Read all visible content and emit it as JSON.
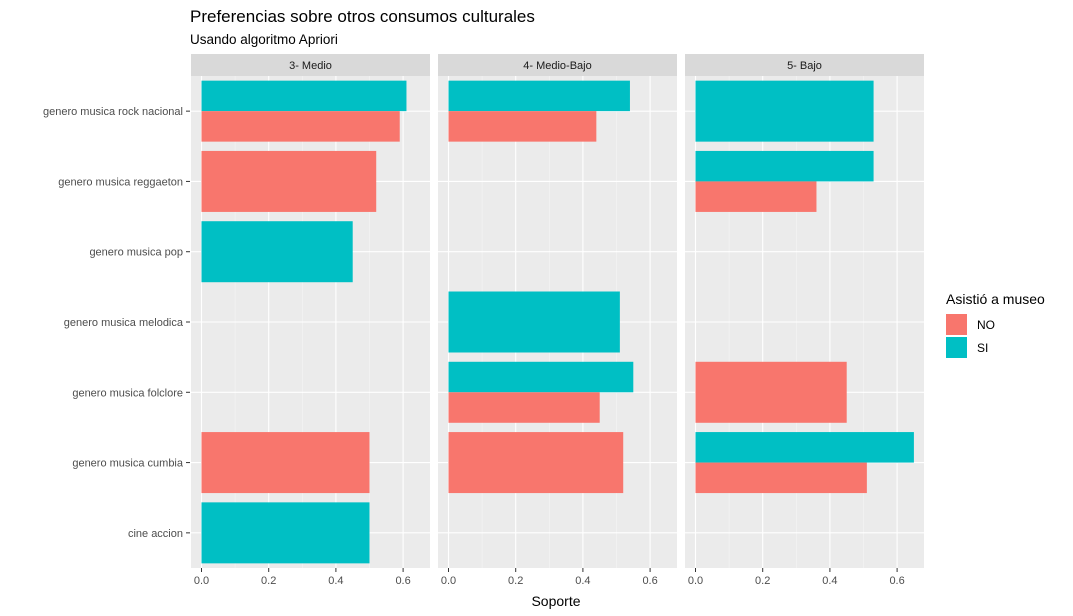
{
  "chart_data": {
    "type": "bar",
    "orientation": "horizontal",
    "title": "Preferencias sobre otros consumos culturales",
    "subtitle": "Usando algoritmo Apriori",
    "xlabel": "Soporte",
    "ylabel": "",
    "xlim": [
      0,
      0.68
    ],
    "x_ticks": [
      "0.0",
      "0.2",
      "0.4",
      "0.6"
    ],
    "categories": [
      "genero musica rock nacional",
      "genero musica reggaeton",
      "genero musica pop",
      "genero musica melodica",
      "genero musica folclore",
      "genero musica cumbia",
      "cine accion"
    ],
    "legend": {
      "title": "Asistió a museo",
      "position": "right",
      "items": [
        {
          "label": "NO",
          "color": "#F8766D"
        },
        {
          "label": "SI",
          "color": "#00BFC4"
        }
      ]
    },
    "grid": true,
    "facets": [
      {
        "label": "3- Medio",
        "bars": [
          {
            "category": "genero musica rock nacional",
            "series": "SI",
            "value": 0.61
          },
          {
            "category": "genero musica rock nacional",
            "series": "NO",
            "value": 0.59
          },
          {
            "category": "genero musica reggaeton",
            "series": "NO",
            "value": 0.52
          },
          {
            "category": "genero musica pop",
            "series": "SI",
            "value": 0.45
          },
          {
            "category": "genero musica cumbia",
            "series": "NO",
            "value": 0.5
          },
          {
            "category": "cine accion",
            "series": "SI",
            "value": 0.5
          }
        ]
      },
      {
        "label": "4- Medio-Bajo",
        "bars": [
          {
            "category": "genero musica rock nacional",
            "series": "SI",
            "value": 0.54
          },
          {
            "category": "genero musica rock nacional",
            "series": "NO",
            "value": 0.44
          },
          {
            "category": "genero musica melodica",
            "series": "SI",
            "value": 0.51
          },
          {
            "category": "genero musica folclore",
            "series": "SI",
            "value": 0.55
          },
          {
            "category": "genero musica folclore",
            "series": "NO",
            "value": 0.45
          },
          {
            "category": "genero musica cumbia",
            "series": "NO",
            "value": 0.52
          }
        ]
      },
      {
        "label": "5- Bajo",
        "bars": [
          {
            "category": "genero musica rock nacional",
            "series": "SI",
            "value": 0.53
          },
          {
            "category": "genero musica reggaeton",
            "series": "SI",
            "value": 0.53
          },
          {
            "category": "genero musica reggaeton",
            "series": "NO",
            "value": 0.36
          },
          {
            "category": "genero musica folclore",
            "series": "NO",
            "value": 0.45
          },
          {
            "category": "genero musica cumbia",
            "series": "SI",
            "value": 0.65
          },
          {
            "category": "genero musica cumbia",
            "series": "NO",
            "value": 0.51
          }
        ]
      }
    ]
  }
}
